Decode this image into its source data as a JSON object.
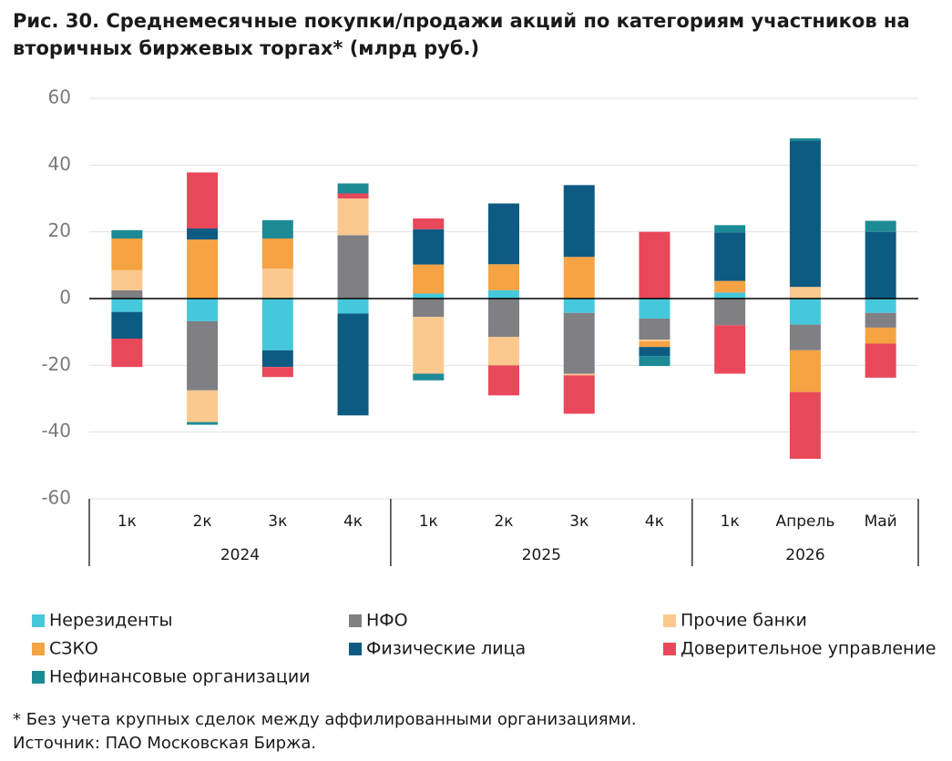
{
  "chart_data": {
    "type": "stacked-bar",
    "title": "Рис. 30. Среднемесячные покупки/продажи акций по категориям участников на вторичных биржевых торгах* (млрд руб.)",
    "categories": [
      "1к",
      "2к",
      "3к",
      "4к",
      "1к",
      "2к",
      "3к",
      "4к",
      "1к",
      "Апрель",
      "Май"
    ],
    "groups": [
      {
        "label": "2024",
        "count": 4
      },
      {
        "label": "2025",
        "count": 4
      },
      {
        "label": "2026",
        "count": 3
      }
    ],
    "series": [
      {
        "name": "Нерезиденты",
        "color": "#46c8dc",
        "values": [
          -4,
          -6.8,
          -15.5,
          -4.5,
          1.5,
          2.5,
          -4.3,
          -6,
          1.8,
          -7.8,
          -4.3
        ]
      },
      {
        "name": "НФО",
        "color": "#7f7f84",
        "values": [
          2.5,
          -20.7,
          0,
          19,
          -5.5,
          -11.5,
          -18.2,
          -6.3,
          -8,
          -7.7,
          -4.4
        ]
      },
      {
        "name": "Прочие банки",
        "color": "#fbc98e",
        "values": [
          6,
          -9.5,
          9,
          11,
          -17,
          -8.5,
          -0.5,
          -0.5,
          0,
          3.5,
          0
        ]
      },
      {
        "name": "СЗКО",
        "color": "#f5a343",
        "values": [
          9.5,
          17.7,
          9,
          0,
          8.7,
          7.8,
          12.5,
          -1.7,
          3.5,
          -12.5,
          -4.8
        ]
      },
      {
        "name": "Физические лица",
        "color": "#0d5b82",
        "values": [
          -8,
          3.3,
          -5,
          -30.5,
          10.6,
          18.2,
          21.5,
          -2.7,
          14.5,
          43.8,
          20
        ]
      },
      {
        "name": "Доверительное управление",
        "color": "#e9485a",
        "values": [
          -8.5,
          16.8,
          -3,
          1.5,
          3.2,
          -9,
          -11.5,
          20,
          -14.5,
          -20,
          -10.2
        ]
      },
      {
        "name": "Нефинансовые организации",
        "color": "#1d8b96",
        "values": [
          2.5,
          -0.8,
          5.5,
          3,
          -2,
          0,
          0,
          -3,
          2.2,
          0.7,
          3.3
        ]
      }
    ],
    "ylim": [
      -60,
      60
    ],
    "yticks": [
      -60,
      -40,
      -20,
      0,
      20,
      40,
      60
    ],
    "grid": true,
    "footnote": "* Без учета крупных сделок между аффилированными организациями.",
    "source": "Источник: ПАО Московская Биржа."
  }
}
